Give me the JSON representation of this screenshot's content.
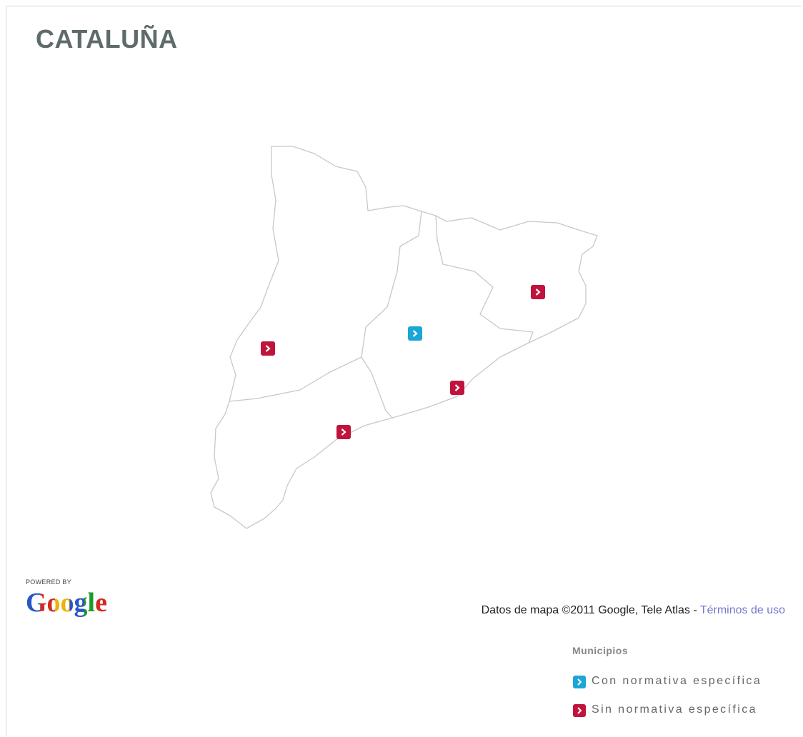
{
  "title": "CATALUÑA",
  "branding": {
    "powered_by": "POWERED BY",
    "logo": "Google"
  },
  "attribution": {
    "text": "Datos de mapa ©2011 Google, Tele Atlas -",
    "link": "Términos de uso"
  },
  "legend": {
    "title": "Municipios",
    "items": [
      {
        "label": "Con normativa específica",
        "color": "#1aa6d6"
      },
      {
        "label": "Sin normativa específica",
        "color": "#c0143c"
      }
    ]
  }
}
